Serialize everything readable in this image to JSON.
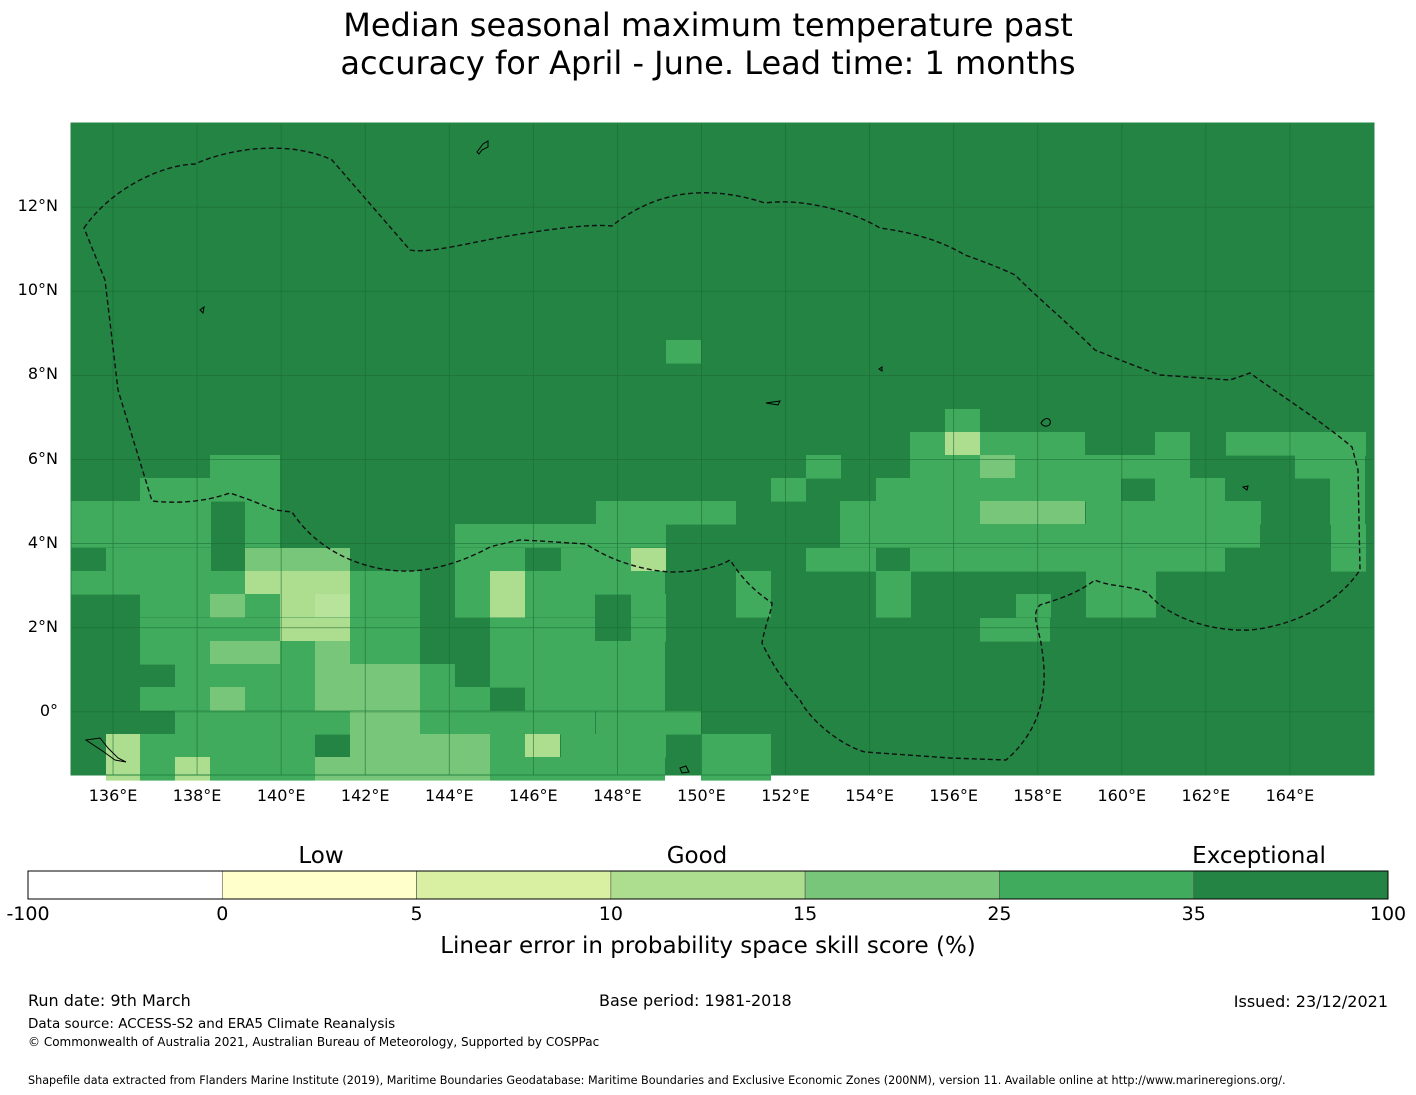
{
  "title": {
    "line1": "Median seasonal maximum temperature past",
    "line2": "accuracy for April - June. Lead time: 1 months"
  },
  "map": {
    "x_ticks": [
      "136°E",
      "138°E",
      "140°E",
      "142°E",
      "144°E",
      "146°E",
      "148°E",
      "150°E",
      "152°E",
      "154°E",
      "156°E",
      "158°E",
      "160°E",
      "162°E",
      "164°E"
    ],
    "y_ticks": [
      "12°N",
      "10°N",
      "8°N",
      "6°N",
      "4°N",
      "2°N",
      "0°"
    ],
    "lon_range": [
      135,
      166
    ],
    "lat_range": [
      -1.5,
      14
    ],
    "gridlines": true,
    "background_color": "#238443"
  },
  "colorbar": {
    "categories": [
      "Low",
      "Good",
      "Exceptional"
    ],
    "ticks": [
      "-100",
      "0",
      "5",
      "10",
      "15",
      "25",
      "35",
      "100"
    ],
    "colors": [
      "#ffffff",
      "#ffffcc",
      "#d9f0a3",
      "#addd8e",
      "#78c679",
      "#41ab5d",
      "#238443"
    ],
    "label": "Linear error in probability space skill score (%)"
  },
  "footer": {
    "run_date": "Run date: 9th March",
    "base_period": "Base period: 1981-2018",
    "issued": "Issued: 23/12/2021",
    "data_source": "Data source: ACCESS-S2 and ERA5 Climate Reanalysis",
    "copyright": "© Commonwealth of Australia 2021, Australian Bureau of Meteorology, Supported by COSPPac",
    "shapefile": "Shapefile data extracted from Flanders Marine Institute (2019), Maritime Boundaries Geodatabase: Maritime Boundaries and Exclusive Economic Zones (200NM), version 11. Available online at http://www.marineregions.org/."
  }
}
